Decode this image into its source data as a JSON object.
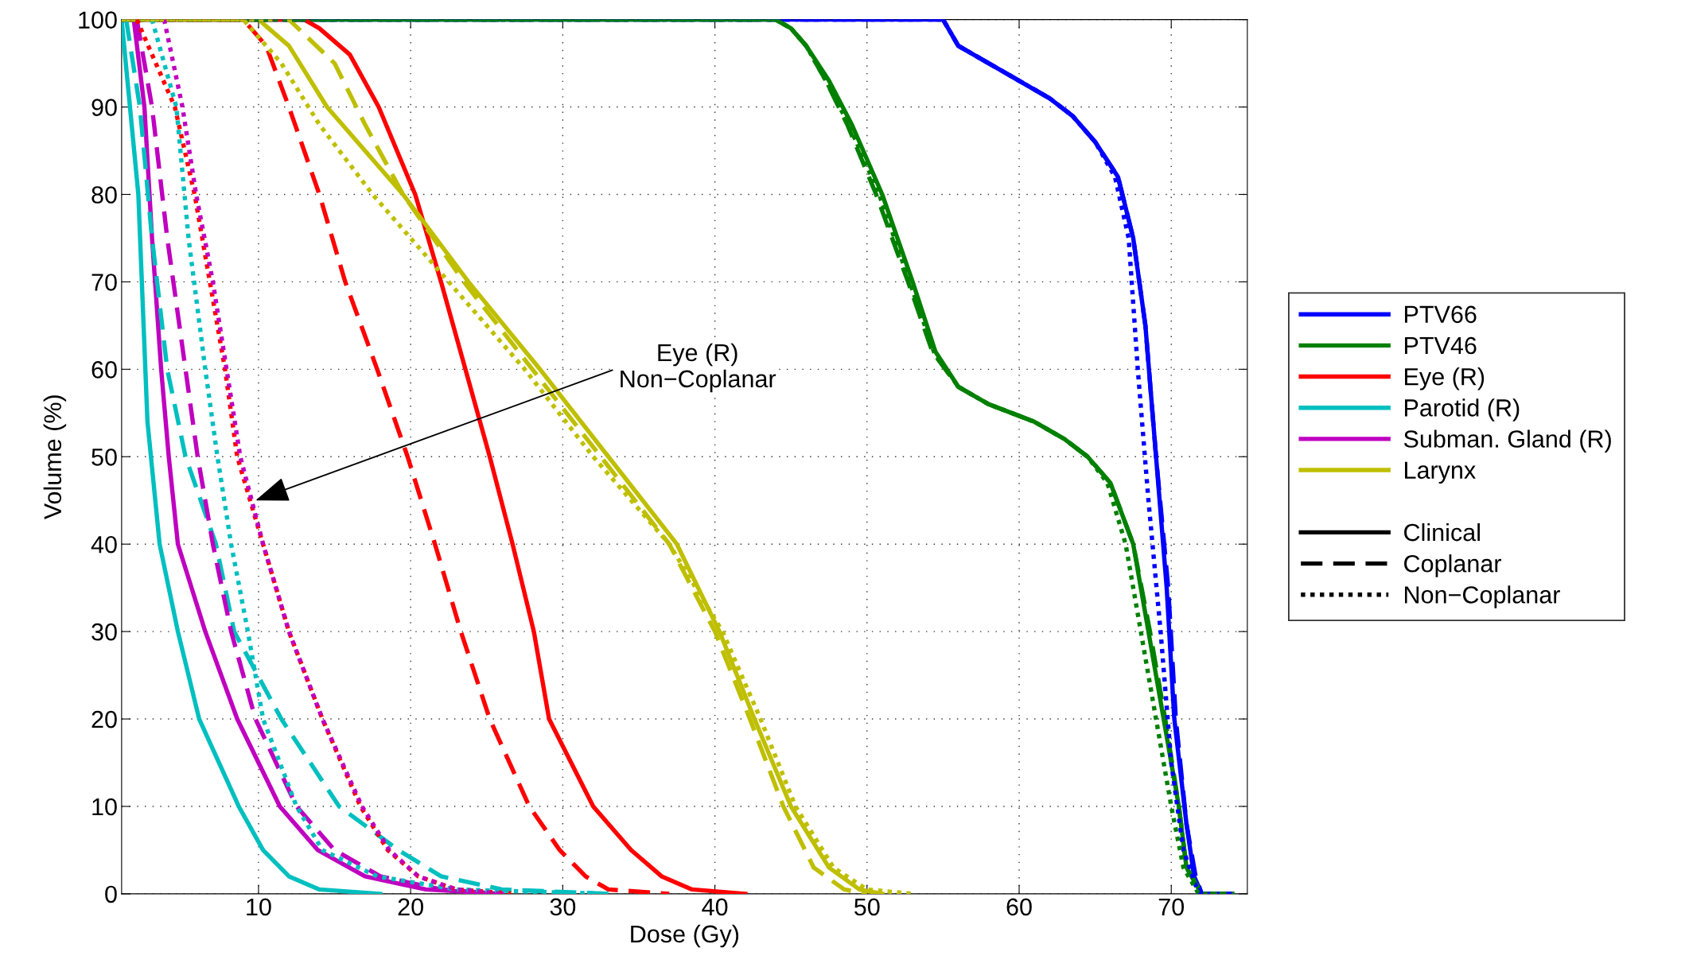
{
  "chart_data": {
    "type": "line",
    "xlabel": "Dose (Gy)",
    "ylabel": "Volume (%)",
    "xlim": [
      1,
      75
    ],
    "ylim": [
      0,
      100
    ],
    "xticks": [
      10,
      20,
      30,
      40,
      50,
      60,
      70
    ],
    "yticks": [
      0,
      10,
      20,
      30,
      40,
      50,
      60,
      70,
      80,
      90,
      100
    ],
    "grid": true,
    "legend": "right",
    "marker": "none",
    "annotations": [
      {
        "text": "Eye (R)\nNon−Coplanar",
        "x": 9.8,
        "y": 45
      }
    ],
    "series": [
      {
        "name": "PTV66",
        "color": "#0000ff",
        "line_style": "solid",
        "x": [
          1,
          55,
          56,
          58,
          60,
          62,
          63.5,
          65,
          66.5,
          67.5,
          68.3,
          69,
          69.7,
          70.2,
          71,
          71.5,
          72,
          74
        ],
        "values": [
          100,
          100,
          97,
          95,
          93,
          91,
          89,
          86,
          82,
          75,
          65,
          50,
          35,
          20,
          8,
          2,
          0,
          0
        ]
      },
      {
        "name": "PTV46",
        "color": "#008000",
        "line_style": "solid",
        "x": [
          1,
          44,
          45,
          46,
          47.5,
          49,
          51,
          53,
          54.5,
          56,
          58,
          61,
          63,
          64.5,
          66,
          67.5,
          68.5,
          69.5,
          70.5,
          71,
          72,
          74
        ],
        "values": [
          100,
          100,
          99,
          97,
          93,
          88,
          80,
          70,
          62,
          58,
          56,
          54,
          52,
          50,
          47,
          40,
          30,
          20,
          10,
          3,
          0,
          0
        ]
      },
      {
        "name": "Eye (R)",
        "color": "#ff0000",
        "line_style": "solid",
        "x": [
          1,
          13,
          14,
          16,
          17.9,
          20.3,
          22,
          23.6,
          25.2,
          26.7,
          28.1,
          29.1,
          32,
          34.5,
          36.5,
          38.5,
          42
        ],
        "values": [
          100,
          100,
          99,
          96,
          90,
          80,
          70,
          60,
          50,
          40,
          30,
          20,
          10,
          5,
          2,
          0.5,
          0
        ]
      },
      {
        "name": "Parotid (R)",
        "color": "#00bfbf",
        "line_style": "solid",
        "x": [
          1,
          2.1,
          2.7,
          3.5,
          4.7,
          6.1,
          8.7,
          10.3,
          12,
          14,
          18
        ],
        "values": [
          100,
          80,
          54,
          40,
          30,
          20,
          10,
          5,
          2,
          0.5,
          0
        ]
      },
      {
        "name": "Subman. Gland (R)",
        "color": "#bf00bf",
        "line_style": "solid",
        "x": [
          1.8,
          2.5,
          3,
          3.6,
          4.1,
          4.7,
          6.5,
          8.6,
          11.4,
          13.9,
          17,
          21,
          26
        ],
        "values": [
          100,
          90,
          75,
          60,
          50,
          40,
          30,
          20,
          10,
          5,
          2,
          0.5,
          0
        ]
      },
      {
        "name": "Larynx",
        "color": "#bfbf00",
        "line_style": "solid",
        "x": [
          1,
          10,
          12,
          14.5,
          19.5,
          23.8,
          28.5,
          33,
          37.5,
          40.3,
          42.6,
          45,
          47.5,
          49.5,
          51
        ],
        "values": [
          100,
          100,
          97,
          90,
          80,
          70,
          60,
          50,
          40,
          30,
          20,
          10,
          3,
          0.5,
          0
        ]
      },
      {
        "color": "#0000ff",
        "line_style": "dashed",
        "x": [
          1,
          55,
          56,
          58,
          60,
          62,
          63.5,
          65,
          66.5,
          67.5,
          68.3,
          69,
          69.8,
          70.3,
          71,
          71.6,
          72,
          74
        ],
        "values": [
          100,
          100,
          97,
          95,
          93,
          91,
          89,
          86,
          82,
          75,
          65,
          50,
          35,
          20,
          8,
          2,
          0,
          0
        ]
      },
      {
        "color": "#008000",
        "line_style": "dashed",
        "x": [
          1,
          44,
          45,
          46,
          47.3,
          48.7,
          50.6,
          52.7,
          54.3,
          56,
          58,
          61,
          63,
          64.5,
          66,
          67.5,
          68.6,
          69.6,
          70.5,
          71,
          72,
          74
        ],
        "values": [
          100,
          100,
          99,
          97,
          93,
          88,
          80,
          70,
          62,
          58,
          56,
          54,
          52,
          50,
          47,
          40,
          30,
          20,
          10,
          3,
          0,
          0
        ]
      },
      {
        "color": "#ff0000",
        "line_style": "dashed",
        "x": [
          1,
          9,
          10.5,
          12,
          14,
          15.7,
          17.8,
          19.8,
          21.6,
          23.3,
          25.2,
          27.8,
          29.8,
          31.5,
          33,
          37
        ],
        "values": [
          100,
          100,
          97,
          90,
          80,
          70,
          60,
          50,
          40,
          30,
          20,
          10,
          5,
          2,
          0.5,
          0
        ]
      },
      {
        "color": "#00bfbf",
        "line_style": "dashed",
        "x": [
          1.3,
          2.2,
          3,
          4,
          5.2,
          7.2,
          8.4,
          11.5,
          15.3,
          19.2,
          22,
          26,
          33
        ],
        "values": [
          100,
          90,
          75,
          60,
          50,
          40,
          30,
          20,
          10,
          5,
          2,
          0.5,
          0
        ]
      },
      {
        "color": "#bf00bf",
        "line_style": "dashed",
        "x": [
          2,
          3,
          4,
          5.2,
          6,
          7,
          8.2,
          9.8,
          12.5,
          15,
          18,
          22,
          26
        ],
        "values": [
          100,
          90,
          75,
          60,
          50,
          40,
          30,
          20,
          10,
          5,
          2,
          0.5,
          0
        ]
      },
      {
        "color": "#bfbf00",
        "line_style": "dashed",
        "x": [
          1,
          12,
          15,
          17,
          19.5,
          23.5,
          28,
          32.5,
          37,
          40,
          42.3,
          44.5,
          46.5,
          48.5,
          50
        ],
        "values": [
          100,
          100,
          95,
          88,
          80,
          70,
          60,
          50,
          40,
          30,
          20,
          10,
          3,
          0.5,
          0
        ]
      },
      {
        "color": "#0000ff",
        "line_style": "dotted",
        "x": [
          1,
          55,
          56,
          58,
          60,
          62,
          63.5,
          65,
          66.3,
          67.2,
          67.8,
          68.5,
          69.3,
          70,
          70.8,
          71.8,
          74
        ],
        "values": [
          100,
          100,
          97,
          95,
          93,
          91,
          89,
          86,
          82,
          75,
          60,
          45,
          30,
          15,
          5,
          0,
          0
        ]
      },
      {
        "color": "#008000",
        "line_style": "dotted",
        "x": [
          1,
          44,
          45,
          46,
          47.3,
          48.8,
          50.8,
          52.8,
          54.4,
          56,
          58,
          61,
          63,
          64.5,
          65.8,
          67,
          68,
          69,
          70,
          70.8,
          71.8,
          74
        ],
        "values": [
          100,
          100,
          99,
          97,
          93,
          88,
          80,
          70,
          62,
          58,
          56,
          54,
          52,
          50,
          47,
          40,
          30,
          20,
          10,
          3,
          0,
          0
        ]
      },
      {
        "color": "#ff0000",
        "line_style": "dotted",
        "x": [
          2,
          4.5,
          5.8,
          6.8,
          7.8,
          8.6,
          10.3,
          12,
          14.2,
          16.7,
          18.5,
          20.5,
          23,
          27
        ],
        "values": [
          100,
          90,
          80,
          70,
          60,
          50,
          40,
          30,
          20,
          10,
          5,
          2,
          0.5,
          0
        ]
      },
      {
        "color": "#00bfbf",
        "line_style": "dotted",
        "x": [
          3,
          4.6,
          5.4,
          6.5,
          7.3,
          8.2,
          9.3,
          10.3,
          12.5,
          14.2,
          17.8,
          23,
          33
        ],
        "values": [
          100,
          90,
          75,
          60,
          50,
          40,
          30,
          20,
          10,
          5,
          2,
          0.5,
          0
        ]
      },
      {
        "color": "#bf00bf",
        "line_style": "dotted",
        "x": [
          3.8,
          5,
          5.9,
          7,
          7.9,
          8.8,
          10.3,
          12,
          14.2,
          16.8,
          18.6,
          20.5,
          23,
          26
        ],
        "values": [
          100,
          90,
          80,
          70,
          60,
          50,
          40,
          30,
          20,
          10,
          5,
          2,
          0.5,
          0
        ]
      },
      {
        "color": "#bfbf00",
        "line_style": "dotted",
        "x": [
          1,
          9,
          11.5,
          14,
          17.5,
          22.5,
          27.5,
          32,
          37,
          40.5,
          43,
          45.3,
          47.8,
          50,
          53
        ],
        "values": [
          100,
          100,
          95,
          88,
          80,
          70,
          60,
          50,
          40,
          30,
          20,
          10,
          3,
          0.5,
          0
        ]
      },
      {
        "name": "Clinical",
        "color": "#000000",
        "line_style": "solid"
      },
      {
        "name": "Coplanar",
        "color": "#000000",
        "line_style": "dashed"
      },
      {
        "name": "Non−Coplanar",
        "color": "#000000",
        "line_style": "dotted"
      }
    ]
  }
}
